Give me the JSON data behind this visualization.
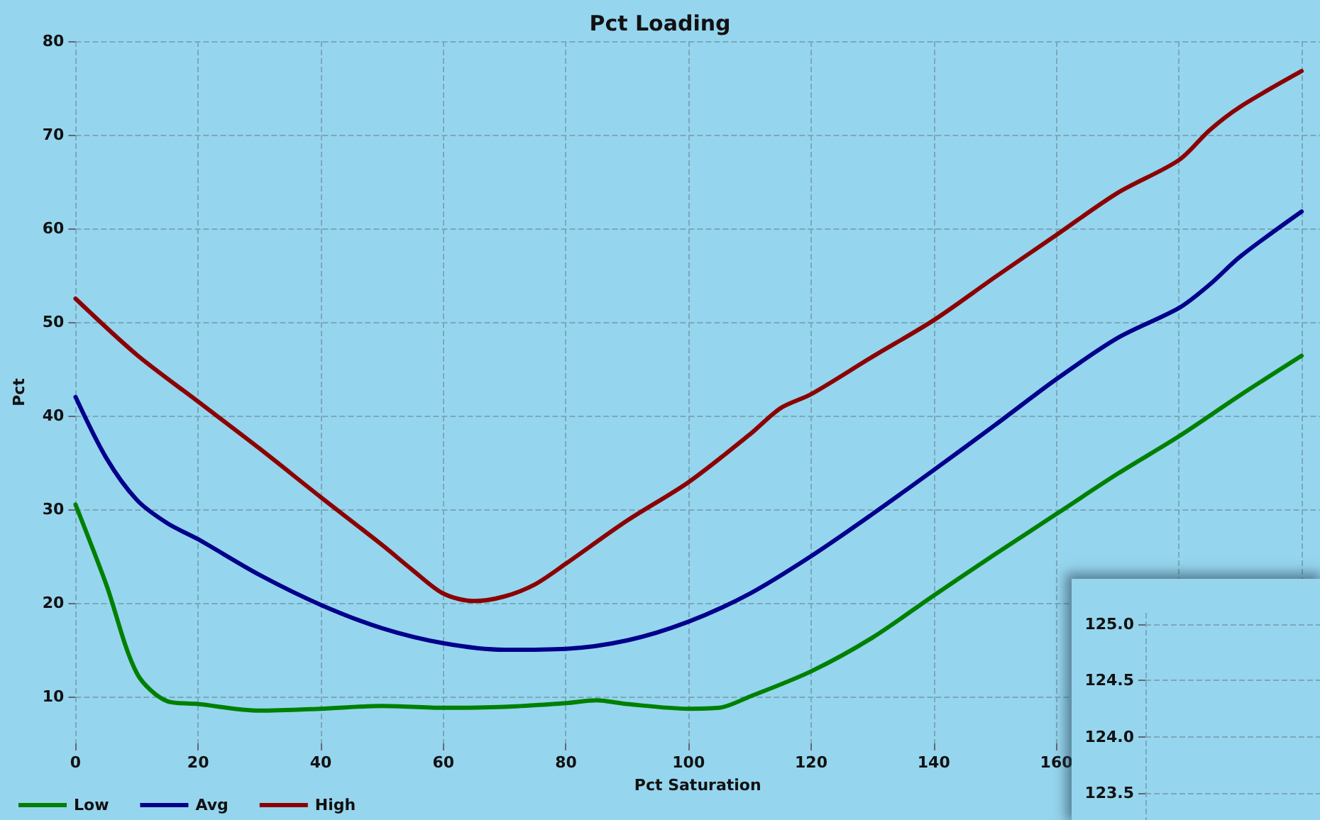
{
  "chart_data": [
    {
      "type": "line",
      "title": "Pct Loading",
      "xlabel": "Pct Saturation",
      "ylabel": "Pct",
      "xlim": [
        0,
        203
      ],
      "xticks": [
        0,
        20,
        40,
        60,
        80,
        100,
        120,
        140,
        160,
        {
          "value": 180,
          "label": null
        },
        {
          "value": 200,
          "label": null
        }
      ],
      "ylim": [
        5,
        80
      ],
      "yticks": [
        10,
        20,
        30,
        40,
        50,
        60,
        70,
        80
      ],
      "grid": true,
      "legend": "bottom left",
      "marker": "none",
      "line_style": "solid",
      "series": [
        {
          "name": "Low",
          "color": "#008000",
          "x": [
            0,
            5,
            10,
            15,
            20,
            30,
            40,
            50,
            60,
            70,
            80,
            85,
            90,
            100,
            105,
            110,
            120,
            130,
            140,
            150,
            160,
            170,
            180,
            190,
            200
          ],
          "values": [
            30.5,
            22,
            12.5,
            9.5,
            9.2,
            8.5,
            8.7,
            9,
            8.8,
            8.9,
            9.3,
            9.6,
            9.2,
            8.7,
            8.8,
            10,
            12.7,
            16.3,
            20.8,
            25.2,
            29.5,
            33.8,
            37.8,
            42.2,
            46.4
          ]
        },
        {
          "name": "Avg",
          "color": "#00008b",
          "x": [
            0,
            5,
            10,
            15,
            20,
            30,
            40,
            50,
            60,
            70,
            80,
            90,
            100,
            110,
            120,
            130,
            140,
            150,
            160,
            170,
            180,
            185,
            190,
            200
          ],
          "values": [
            42,
            35.5,
            31,
            28.5,
            26.8,
            23,
            19.8,
            17.3,
            15.7,
            15,
            15.1,
            16,
            18,
            21,
            25,
            29.5,
            34.2,
            39,
            43.9,
            48.3,
            51.5,
            54,
            57,
            61.8
          ]
        },
        {
          "name": "High",
          "color": "#8b0000",
          "x": [
            0,
            10,
            20,
            30,
            40,
            50,
            55,
            60,
            65,
            70,
            75,
            80,
            90,
            100,
            110,
            115,
            120,
            130,
            140,
            150,
            160,
            170,
            180,
            185,
            190,
            200
          ],
          "values": [
            52.5,
            46.5,
            41.5,
            36.5,
            31.3,
            26.2,
            23.5,
            21,
            20.2,
            20.7,
            22,
            24.2,
            28.8,
            32.9,
            38,
            40.8,
            42.3,
            46.3,
            50.2,
            54.8,
            59.3,
            63.8,
            67.3,
            70.5,
            73,
            76.8
          ]
        }
      ]
    },
    {
      "type": "line",
      "categories": [
        null,
        null
      ],
      "ylim": [
        123.2,
        125.1
      ],
      "yticks": [
        {
          "value": 123.5,
          "label": "123.5"
        },
        {
          "value": 124,
          "label": "124.0"
        },
        {
          "value": 124.5,
          "label": "124.5"
        },
        {
          "value": 125,
          "label": "125.0"
        }
      ],
      "tick_labels": "y",
      "grid": true
    }
  ]
}
